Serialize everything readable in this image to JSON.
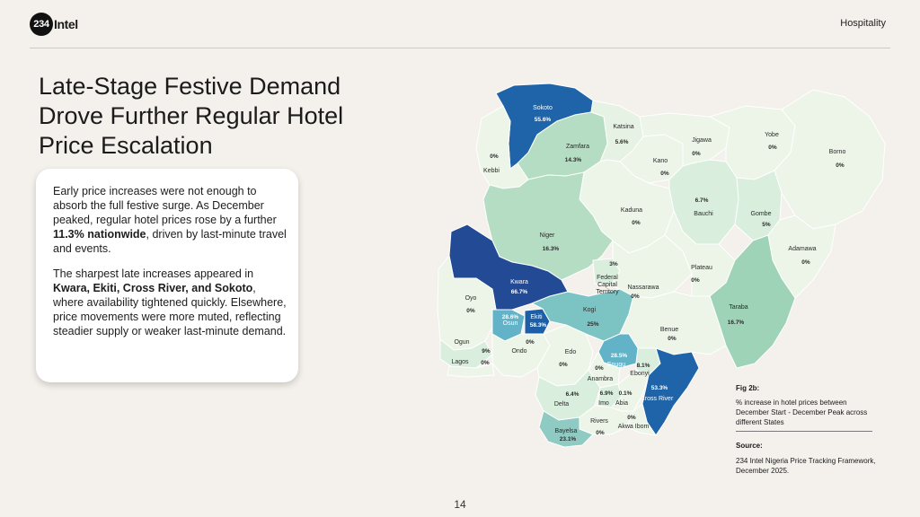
{
  "brand": {
    "mark": "234",
    "name": "Intel"
  },
  "section": "Hospitality",
  "title": "Late-Stage Festive Demand Drove Further Regular Hotel Price Escalation",
  "card": {
    "p1_a": "Early price increases were not enough to absorb the full festive surge. As December peaked, regular hotel prices rose by a further ",
    "p1_b": "11.3% nationwide",
    "p1_c": ", driven by last-minute travel and events.",
    "p2_a": "The sharpest late increases appeared in ",
    "p2_b": "Kwara, Ekiti, Cross River, and Sokoto",
    "p2_c": ", where availability tightened quickly. Elsewhere, price movements were more muted, reflecting steadier supply or weaker last-minute demand."
  },
  "map": {
    "states": [
      {
        "name": "Sokoto",
        "value": "55.6%",
        "fill": "#1f64a8"
      },
      {
        "name": "Katsina",
        "value": "5.6%",
        "fill": "#e6f2e3"
      },
      {
        "name": "Zamfara",
        "value": "14.3%",
        "fill": "#b5ddc3"
      },
      {
        "name": "Kebbi",
        "value": "0%",
        "fill": "#ecf5e8"
      },
      {
        "name": "Jigawa",
        "value": "0%",
        "fill": "#ecf5e8"
      },
      {
        "name": "Yobe",
        "value": "0%",
        "fill": "#ecf5e8"
      },
      {
        "name": "Borno",
        "value": "0%",
        "fill": "#ecf5e8"
      },
      {
        "name": "Kano",
        "value": "0%",
        "fill": "#ecf5e8"
      },
      {
        "name": "Kaduna",
        "value": "0%",
        "fill": "#ecf5e8"
      },
      {
        "name": "Bauchi",
        "value": "6.7%",
        "fill": "#d9eedd"
      },
      {
        "name": "Gombe",
        "value": "5%",
        "fill": "#d9eedd"
      },
      {
        "name": "Adamawa",
        "value": "0%",
        "fill": "#ecf5e8"
      },
      {
        "name": "Niger",
        "value": "16.3%",
        "fill": "#b5ddc3"
      },
      {
        "name": "Federal Capital Territory",
        "value": "3%",
        "fill": "#d9eedd"
      },
      {
        "name": "Nassarawa",
        "value": "0%",
        "fill": "#ecf5e8"
      },
      {
        "name": "Plateau",
        "value": "0%",
        "fill": "#ecf5e8"
      },
      {
        "name": "Taraba",
        "value": "16.7%",
        "fill": "#9fd3b7"
      },
      {
        "name": "Kwara",
        "value": "66.7%",
        "fill": "#234a94"
      },
      {
        "name": "Oyo",
        "value": "0%",
        "fill": "#ecf5e8"
      },
      {
        "name": "Osun",
        "value": "28.6%",
        "fill": "#62b2c8"
      },
      {
        "name": "Ekiti",
        "value": "58.3%",
        "fill": "#1c5fa6"
      },
      {
        "name": "Kogi",
        "value": "25%",
        "fill": "#7cc4c4"
      },
      {
        "name": "Benue",
        "value": "0%",
        "fill": "#ecf5e8"
      },
      {
        "name": "Ogun",
        "value": "9%",
        "fill": "#d9eedd"
      },
      {
        "name": "Lagos",
        "value": "0%",
        "fill": "#ecf5e8"
      },
      {
        "name": "Ondo",
        "value": "0%",
        "fill": "#ecf5e8"
      },
      {
        "name": "Edo",
        "value": "0%",
        "fill": "#ecf5e8"
      },
      {
        "name": "Enugu",
        "value": "28.5%",
        "fill": "#62b2c8"
      },
      {
        "name": "Ebonyi",
        "value": "8.1%",
        "fill": "#d9eedd"
      },
      {
        "name": "Anambra",
        "value": "0%",
        "fill": "#ecf5e8"
      },
      {
        "name": "Cross River",
        "value": "53.3%",
        "fill": "#1f64a8"
      },
      {
        "name": "Delta",
        "value": "6.4%",
        "fill": "#d9eedd"
      },
      {
        "name": "Imo",
        "value": "6.9%",
        "fill": "#d9eedd"
      },
      {
        "name": "Abia",
        "value": "0.1%",
        "fill": "#ecf5e8"
      },
      {
        "name": "Rivers",
        "value": "0%",
        "fill": "#ecf5e8"
      },
      {
        "name": "Akwa Ibom",
        "value": "0%",
        "fill": "#ecf5e8"
      },
      {
        "name": "Bayelsa",
        "value": "23.1%",
        "fill": "#8fcbc3"
      }
    ]
  },
  "figure": {
    "label": "Fig 2b:",
    "caption": "% increase in hotel prices between December Start - December Peak across different States"
  },
  "source": {
    "label": "Source:",
    "text": "234 Intel Nigeria Price Tracking Framework, December 2025."
  },
  "page_number": "14"
}
